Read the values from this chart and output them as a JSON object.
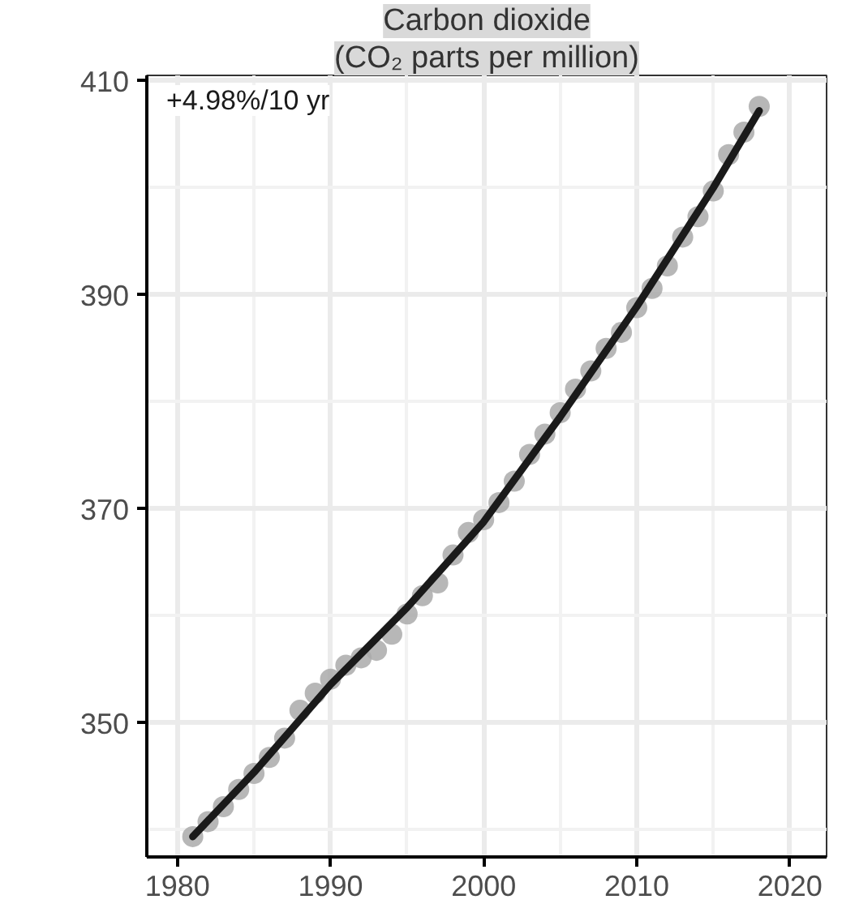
{
  "chart_data": {
    "type": "scatter",
    "title": "Carbon dioxide",
    "subtitle": "(CO₂ parts per million)",
    "annotations": [
      "+4.98%/10 yr"
    ],
    "x": [
      1981,
      1982,
      1983,
      1984,
      1985,
      1986,
      1987,
      1988,
      1989,
      1990,
      1991,
      1992,
      1993,
      1994,
      1995,
      1996,
      1997,
      1998,
      1999,
      2000,
      2001,
      2002,
      2003,
      2004,
      2005,
      2006,
      2007,
      2008,
      2009,
      2010,
      2011,
      2012,
      2013,
      2014,
      2015,
      2016,
      2017,
      2018
    ],
    "series": [
      {
        "color": "#aaaaaa",
        "marker": "circle",
        "values": [
          339.4,
          340.8,
          342.2,
          343.8,
          345.3,
          346.8,
          348.6,
          351.2,
          352.8,
          354.1,
          355.4,
          356.1,
          356.8,
          358.3,
          360.2,
          361.9,
          363.1,
          365.7,
          367.8,
          369.0,
          370.6,
          372.6,
          375.1,
          377.0,
          379.0,
          381.2,
          382.9,
          385.0,
          386.5,
          388.8,
          390.6,
          392.7,
          395.4,
          397.3,
          399.7,
          403.1,
          405.2,
          407.6
        ]
      },
      {
        "type": "line",
        "color": "#1a1a1a",
        "line_style": "solid",
        "x": [
          1981,
          1985,
          1990,
          1995,
          2000,
          2005,
          2010,
          2015,
          2018
        ],
        "values": [
          339.4,
          345.4,
          353.6,
          360.8,
          368.8,
          378.6,
          388.9,
          400.0,
          407.2
        ]
      }
    ],
    "xlim": [
      1978,
      2022.4
    ],
    "ylim": [
      337.5,
      410.5
    ],
    "xticks": [
      1980,
      1990,
      2000,
      2010,
      2020
    ],
    "yticks": [
      350,
      370,
      390,
      410
    ],
    "grid": true
  }
}
